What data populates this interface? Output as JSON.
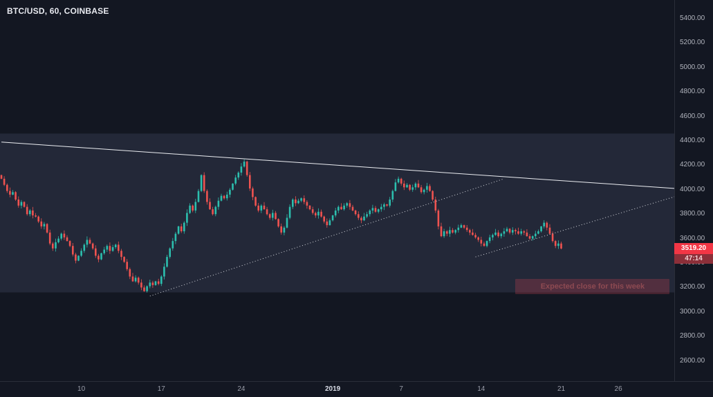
{
  "header": {
    "symbol_title": "BTC/USD, 60, COINBASE"
  },
  "colors": {
    "background": "#131722",
    "band": "#232838",
    "axis_text": "#b2b5be",
    "up_candle": "#2cbfae",
    "down_candle": "#ef5350",
    "trendline": "#eceef2",
    "last_price_bg": "#f23645",
    "countdown_bg": "#8c2f39",
    "annotation_bg": "rgba(204,68,82,0.28)",
    "annotation_text": "#8d4a52"
  },
  "price_axis": {
    "current_price_label": "3519.20",
    "countdown_label": "47:14"
  },
  "chart_data": {
    "type": "candlestick",
    "symbol": "BTC/USD",
    "interval": "60",
    "exchange": "COINBASE",
    "last_price": 3519.2,
    "y_axis": {
      "min": 2600,
      "max": 5400,
      "step": 200,
      "tick_values": [
        5400,
        5200,
        5000,
        4800,
        4600,
        4400,
        4200,
        4000,
        3800,
        3600,
        3400,
        3200,
        3000,
        2800,
        2600
      ]
    },
    "x_axis": {
      "ticks": [
        {
          "label": "10",
          "idx": 28
        },
        {
          "label": "17",
          "idx": 56
        },
        {
          "label": "24",
          "idx": 84
        },
        {
          "label": "2019",
          "idx": 116,
          "strong": true
        },
        {
          "label": "7",
          "idx": 140
        },
        {
          "label": "14",
          "idx": 168
        },
        {
          "label": "21",
          "idx": 196
        },
        {
          "label": "26",
          "idx": 216
        }
      ]
    },
    "highlight_band": {
      "top_price": 4460,
      "bottom_price": 3160
    },
    "trendlines": [
      {
        "name": "descending-resistance-line",
        "style": "solid",
        "x1_idx": 0,
        "price1": 4390,
        "x2_idx": 236,
        "price2": 4010
      },
      {
        "name": "rising-wedge-support-dotted",
        "style": "dotted",
        "x1_idx": 52,
        "price1": 3130,
        "x2_idx": 176,
        "price2": 4090
      },
      {
        "name": "rising-channel-dotted",
        "style": "dotted",
        "x1_idx": 166,
        "price1": 3450,
        "x2_idx": 236,
        "price2": 3945
      }
    ],
    "annotation": {
      "text": "Expected close for this week",
      "start_idx": 180,
      "end_idx": 234,
      "price": 3210
    },
    "candles": {
      "hours_per_candle": 6,
      "first_open": 4120,
      "closes": [
        4090,
        4040,
        3990,
        3960,
        3980,
        3920,
        3870,
        3900,
        3860,
        3800,
        3830,
        3790,
        3780,
        3740,
        3700,
        3720,
        3650,
        3560,
        3520,
        3570,
        3600,
        3640,
        3610,
        3580,
        3540,
        3470,
        3420,
        3460,
        3500,
        3550,
        3590,
        3560,
        3520,
        3460,
        3430,
        3480,
        3510,
        3540,
        3500,
        3530,
        3550,
        3500,
        3450,
        3410,
        3350,
        3290,
        3250,
        3280,
        3240,
        3200,
        3170,
        3210,
        3240,
        3220,
        3250,
        3230,
        3290,
        3370,
        3450,
        3520,
        3580,
        3640,
        3700,
        3660,
        3730,
        3810,
        3870,
        3830,
        3900,
        3990,
        4120,
        3990,
        3900,
        3840,
        3800,
        3860,
        3910,
        3950,
        3930,
        3960,
        4000,
        4050,
        4100,
        4140,
        4190,
        4230,
        4120,
        4010,
        3940,
        3870,
        3830,
        3870,
        3840,
        3800,
        3770,
        3810,
        3760,
        3700,
        3650,
        3690,
        3770,
        3860,
        3920,
        3890,
        3910,
        3930,
        3900,
        3870,
        3840,
        3810,
        3790,
        3820,
        3780,
        3740,
        3710,
        3750,
        3790,
        3830,
        3860,
        3840,
        3870,
        3890,
        3860,
        3830,
        3800,
        3770,
        3750,
        3780,
        3800,
        3830,
        3850,
        3820,
        3840,
        3860,
        3880,
        3870,
        3920,
        3990,
        4060,
        4090,
        4050,
        4020,
        4040,
        4000,
        4020,
        4050,
        4020,
        3980,
        4000,
        4030,
        3990,
        3920,
        3830,
        3700,
        3620,
        3660,
        3640,
        3670,
        3650,
        3670,
        3690,
        3710,
        3690,
        3670,
        3650,
        3630,
        3610,
        3590,
        3560,
        3540,
        3580,
        3610,
        3630,
        3650,
        3620,
        3640,
        3660,
        3680,
        3650,
        3670,
        3660,
        3640,
        3660,
        3650,
        3620,
        3600,
        3620,
        3640,
        3660,
        3700,
        3730,
        3690,
        3640,
        3580,
        3540,
        3560,
        3519.2
      ]
    }
  }
}
